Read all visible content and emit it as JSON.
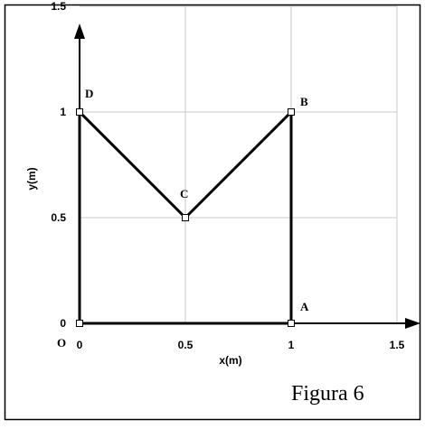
{
  "chart_data": {
    "type": "line",
    "xlabel": "x(m)",
    "ylabel": "y(m)",
    "xlim": [
      0,
      1.5
    ],
    "ylim": [
      0,
      1.5
    ],
    "x_ticks": [
      "0",
      "0.5",
      "1",
      "1.5"
    ],
    "y_ticks": [
      "0",
      "0.5",
      "1",
      "1.5"
    ],
    "grid": true,
    "origin_label": "O",
    "points": [
      {
        "label": "",
        "x": 0,
        "y": 0
      },
      {
        "label": "A",
        "x": 1,
        "y": 0
      },
      {
        "label": "B",
        "x": 1,
        "y": 1
      },
      {
        "label": "C",
        "x": 0.5,
        "y": 0.5
      },
      {
        "label": "D",
        "x": 0,
        "y": 1
      }
    ],
    "series": [
      {
        "x": [
          0,
          1,
          1,
          0.5,
          0,
          0
        ],
        "y": [
          0,
          0,
          1,
          0.5,
          1,
          0
        ]
      }
    ]
  },
  "caption": "Figura 6"
}
